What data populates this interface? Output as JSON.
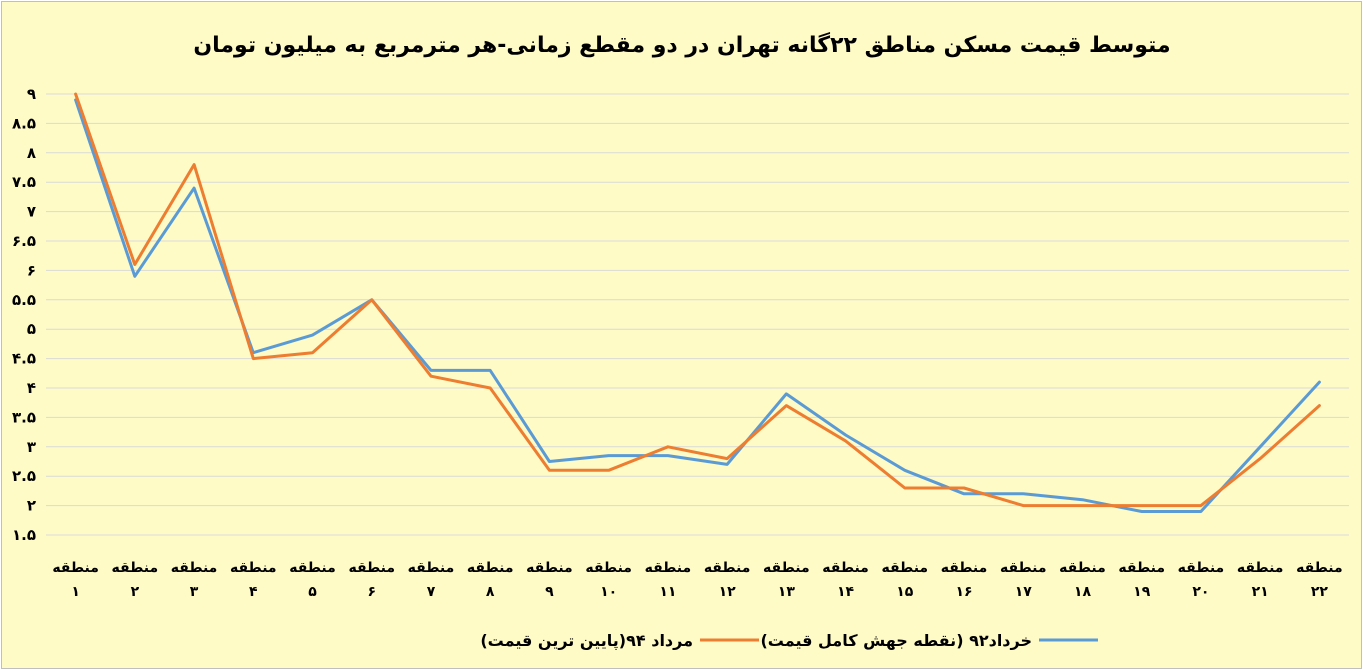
{
  "chart_data": {
    "type": "line",
    "title": "متوسط قیمت مسکن مناطق ۲۲گانه تهران در دو مقطع زمانی-هر مترمربع به میلیون تومان",
    "categories": [
      [
        "منطقه",
        "۱"
      ],
      [
        "منطقه",
        "۲"
      ],
      [
        "منطقه",
        "۳"
      ],
      [
        "منطقه",
        "۴"
      ],
      [
        "منطقه",
        "۵"
      ],
      [
        "منطقه",
        "۶"
      ],
      [
        "منطقه",
        "۷"
      ],
      [
        "منطقه",
        "۸"
      ],
      [
        "منطقه",
        "۹"
      ],
      [
        "منطقه",
        "۱۰"
      ],
      [
        "منطقه",
        "۱۱"
      ],
      [
        "منطقه",
        "۱۲"
      ],
      [
        "منطقه",
        "۱۳"
      ],
      [
        "منطقه",
        "۱۴"
      ],
      [
        "منطقه",
        "۱۵"
      ],
      [
        "منطقه",
        "۱۶"
      ],
      [
        "منطقه",
        "۱۷"
      ],
      [
        "منطقه",
        "۱۸"
      ],
      [
        "منطقه",
        "۱۹"
      ],
      [
        "منطقه",
        "۲۰"
      ],
      [
        "منطقه",
        "۲۱"
      ],
      [
        "منطقه",
        "۲۲"
      ]
    ],
    "yticks": [
      "۱.۵",
      "۲",
      "۲.۵",
      "۳",
      "۳.۵",
      "۴",
      "۴.۵",
      "۵",
      "۵.۵",
      "۶",
      "۶.۵",
      "۷",
      "۷.۵",
      "۸",
      "۸.۵",
      "۹"
    ],
    "ylim": [
      1.5,
      9
    ],
    "ystep": 0.5,
    "grid": true,
    "legend_position": "bottom",
    "series": [
      {
        "name": "خرداد۹۲ (نقطه جهش کامل قیمت)",
        "color": "#5b9bd5",
        "values": [
          8.9,
          5.9,
          7.4,
          4.6,
          4.9,
          5.5,
          4.3,
          4.3,
          2.75,
          2.85,
          2.85,
          2.7,
          3.9,
          3.2,
          2.6,
          2.2,
          2.2,
          2.1,
          1.9,
          1.9,
          3.0,
          4.1
        ]
      },
      {
        "name": "مرداد ۹۴(پایین ترین قیمت)",
        "color": "#ed7d31",
        "values": [
          9.0,
          6.1,
          7.8,
          4.5,
          4.6,
          5.5,
          4.2,
          4.0,
          2.6,
          2.6,
          3.0,
          2.8,
          3.7,
          3.1,
          2.3,
          2.3,
          2.0,
          2.0,
          2.0,
          2.0,
          2.8,
          3.7
        ]
      }
    ]
  }
}
